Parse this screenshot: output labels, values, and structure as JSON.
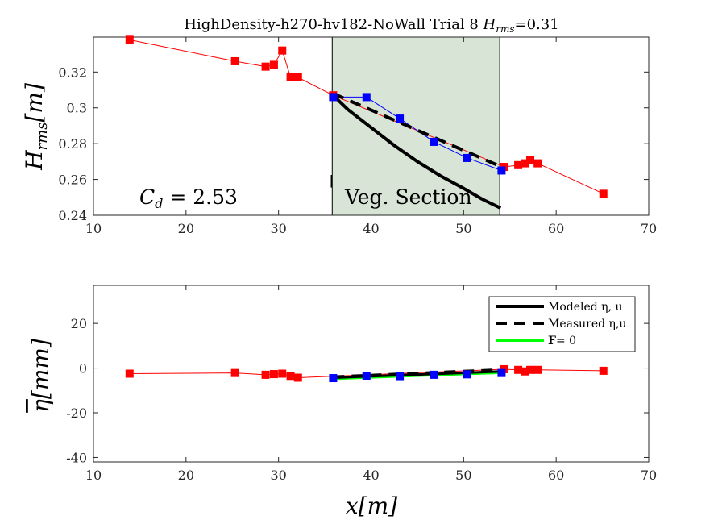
{
  "title": "HighDensity-h270-hv182-NoWall Trial 8 H_rms=0.31",
  "title_parts": {
    "main": "HighDensity-h270-hv182-NoWall Trial 8 ",
    "sym": "H",
    "sub": "rms",
    "val": "=0.31"
  },
  "colors": {
    "measured": "#ff0000",
    "veg_points": "#0000ff",
    "modeled": "#000000",
    "zero_force": "#00ff00",
    "veg_section": "#d8e5d6"
  },
  "chart_data": [
    {
      "type": "line",
      "panel": "top",
      "ylabel": "H_rms[m]",
      "ylabel_parts": {
        "sym": "H",
        "sub": "rms",
        "unit": "[m]"
      },
      "xlim": [
        10,
        70
      ],
      "ylim": [
        0.24,
        0.3395
      ],
      "xticks": [
        10,
        20,
        30,
        40,
        50,
        60,
        70
      ],
      "yticks": [
        0.24,
        0.26,
        0.28,
        0.3,
        0.32
      ],
      "ytick_labels": [
        "0.24",
        "0.26",
        "0.28",
        "0.3",
        "0.32"
      ],
      "veg_section": {
        "x0": 35.8,
        "x1": 53.9,
        "label": "Veg. Section"
      },
      "annotation": {
        "text": "C_d = 2.53",
        "sym": "C",
        "sub": "d",
        "rest": " = 2.53"
      },
      "series": [
        {
          "role": "measured",
          "x": [
            13.9,
            25.3,
            28.6,
            29.5,
            30.4,
            31.3,
            32.1,
            35.9,
            54.4,
            55.9,
            56.6,
            57.2,
            58.0,
            65.1
          ],
          "y": [
            0.338,
            0.326,
            0.323,
            0.324,
            0.332,
            0.317,
            0.317,
            0.307,
            0.267,
            0.268,
            0.269,
            0.271,
            0.269,
            0.252
          ]
        },
        {
          "role": "veg_points",
          "x": [
            35.9,
            39.5,
            43.1,
            46.8,
            50.4,
            54.1
          ],
          "y": [
            0.306,
            0.306,
            0.294,
            0.281,
            0.272,
            0.265
          ]
        },
        {
          "role": "modeled",
          "x": [
            35.9,
            37.5,
            40.0,
            42.5,
            45.0,
            47.5,
            50.0,
            52.0,
            54.0
          ],
          "y": [
            0.307,
            0.299,
            0.289,
            0.279,
            0.27,
            0.262,
            0.255,
            0.249,
            0.244
          ]
        },
        {
          "role": "measured_fit",
          "x": [
            35.9,
            54.1
          ],
          "y": [
            0.308,
            0.267
          ]
        }
      ]
    },
    {
      "type": "line",
      "panel": "bottom",
      "ylabel": "η[mm]",
      "ylabel_parts": {
        "sym": "η",
        "unit": "[mm]"
      },
      "xlabel": "x[m]",
      "xlabel_parts": {
        "sym": "x",
        "unit": "[m]"
      },
      "xlim": [
        10,
        70
      ],
      "ylim": [
        -42,
        37
      ],
      "xticks": [
        10,
        20,
        30,
        40,
        50,
        60,
        70
      ],
      "yticks": [
        -40,
        -20,
        0,
        20
      ],
      "ytick_labels": [
        "-40",
        "-20",
        "0",
        "20"
      ],
      "legend_position": "top-right",
      "legend": [
        {
          "role": "modeled",
          "text": "Modeled η, u"
        },
        {
          "role": "measured_fit",
          "text": "Measured η,u"
        },
        {
          "role": "zero_force",
          "text": "F= 0",
          "bold_part": "F",
          "rest": "= 0"
        }
      ],
      "series": [
        {
          "role": "measured",
          "x": [
            13.9,
            25.3,
            28.6,
            29.5,
            30.4,
            31.3,
            32.1,
            54.4,
            55.9,
            56.6,
            57.2,
            58.0,
            65.1
          ],
          "y": [
            -2.5,
            -2.2,
            -3.0,
            -2.7,
            -2.5,
            -3.5,
            -4.3,
            -0.5,
            -0.8,
            -1.5,
            -0.8,
            -0.8,
            -1.2
          ]
        },
        {
          "role": "veg_points",
          "x": [
            35.9,
            39.5,
            43.1,
            46.8,
            50.4,
            54.1
          ],
          "y": [
            -4.5,
            -3.4,
            -3.6,
            -3.0,
            -2.8,
            -2.2
          ]
        },
        {
          "role": "modeled",
          "x": [
            35.9,
            54.0
          ],
          "y": [
            -4.3,
            -1.5
          ]
        },
        {
          "role": "measured_fit",
          "x": [
            35.9,
            54.0
          ],
          "y": [
            -4.0,
            -0.8
          ]
        },
        {
          "role": "zero_force",
          "x": [
            35.9,
            54.0
          ],
          "y": [
            -4.6,
            -1.9
          ]
        }
      ]
    }
  ]
}
